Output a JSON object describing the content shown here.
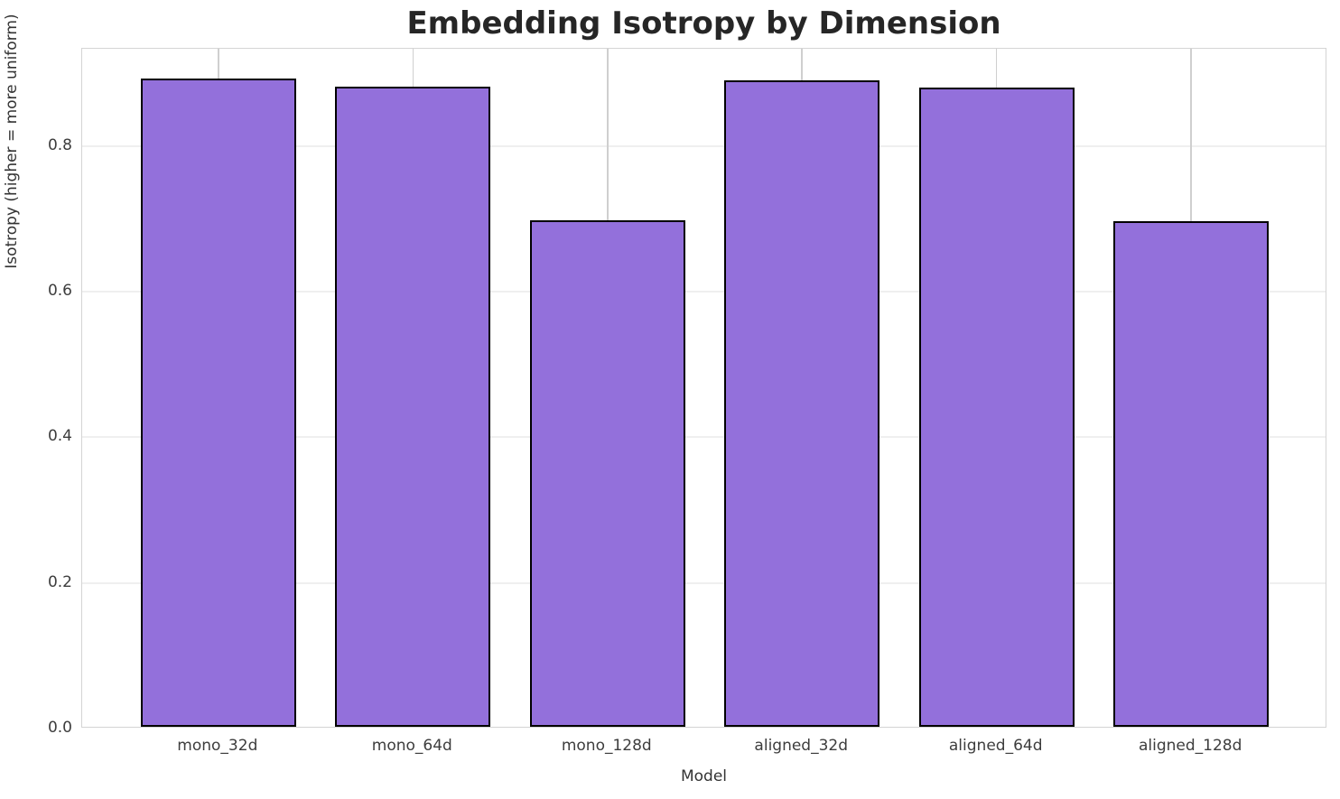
{
  "title": "Embedding Isotropy by Dimension",
  "chart_data": {
    "type": "bar",
    "title": "Embedding Isotropy by Dimension",
    "xlabel": "Model",
    "ylabel": "Isotropy (higher = more uniform)",
    "categories": [
      "mono_32d",
      "mono_64d",
      "mono_128d",
      "aligned_32d",
      "aligned_64d",
      "aligned_128d"
    ],
    "values": [
      0.89,
      0.879,
      0.695,
      0.888,
      0.878,
      0.694
    ],
    "ylim": [
      0,
      0.9335
    ],
    "yticks": [
      0.0,
      0.2,
      0.4,
      0.6,
      0.8
    ],
    "ytick_labels": [
      "0.0",
      "0.2",
      "0.4",
      "0.6",
      "0.8"
    ],
    "grid": true,
    "legend": false,
    "bar_color": "#9370DB",
    "bar_edge_color": "#000000",
    "grid_color_horizontal": "#efefef",
    "grid_color_vertical": "#cfcfcf",
    "spine_color": "#d4d4d4",
    "title_color": "#262626",
    "tick_label_color": "#3d3d3d"
  }
}
